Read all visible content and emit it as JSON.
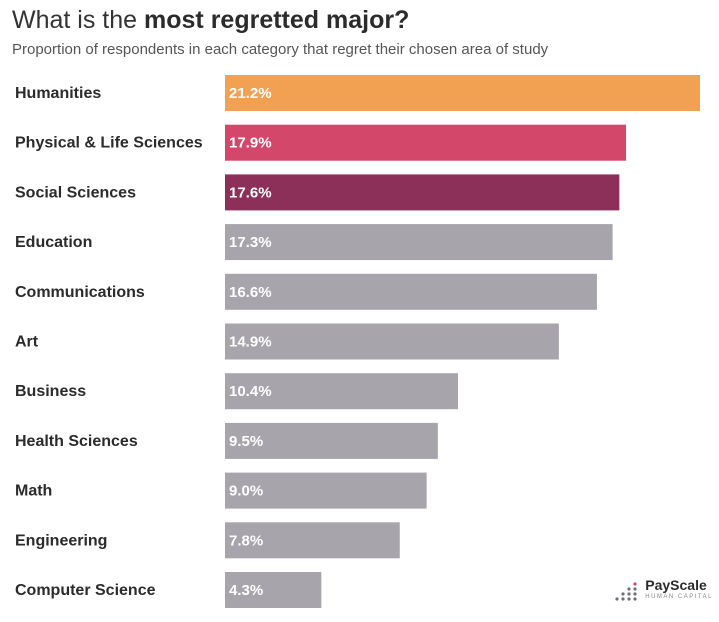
{
  "header": {
    "title_prefix": "What is the",
    "title_bold": "most regretted major?",
    "subtitle": "Proportion of respondents in each category that regret their chosen area of study"
  },
  "chart_data": {
    "type": "bar",
    "orientation": "horizontal",
    "title": "What is the most regretted major?",
    "subtitle": "Proportion of respondents in each category that regret their chosen area of study",
    "categories": [
      "Humanities",
      "Physical & Life Sciences",
      "Social Sciences",
      "Education",
      "Communications",
      "Art",
      "Business",
      "Health Sciences",
      "Math",
      "Engineering",
      "Computer Science"
    ],
    "values": [
      21.2,
      17.9,
      17.6,
      17.3,
      16.6,
      14.9,
      10.4,
      9.5,
      9.0,
      7.8,
      4.3
    ],
    "value_labels": [
      "21.2%",
      "17.9%",
      "17.6%",
      "17.3%",
      "16.6%",
      "14.9%",
      "10.4%",
      "9.5%",
      "9.0%",
      "7.8%",
      "4.3%"
    ],
    "colors": [
      "#f2a153",
      "#d2476a",
      "#8c3059",
      "#a7a4ab",
      "#a7a4ab",
      "#a7a4ab",
      "#a7a4ab",
      "#a7a4ab",
      "#a7a4ab",
      "#a7a4ab",
      "#a7a4ab"
    ],
    "unit": "%",
    "xlim": [
      0,
      21.2
    ],
    "grid": false,
    "xlabel": "",
    "ylabel": ""
  },
  "logo": {
    "name": "PayScale",
    "tagline": "HUMAN CAPITAL",
    "accent": "#d2476a",
    "dot_color": "#6f6f77"
  }
}
